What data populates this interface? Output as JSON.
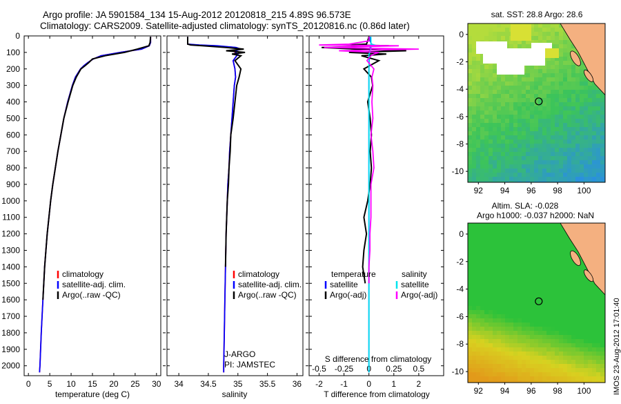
{
  "header": {
    "line1": "Argo profile: JA 5901584_134 15-Aug-2012 20120818_215 4.89S 96.573E",
    "line2": "Climatology: CARS2009. Satellite-adjusted climatology: synTS_20120816.nc (0.86d later)"
  },
  "side_stamp": "IMOS 23-Aug-2012 17:01:40",
  "colors": {
    "climatology": "#ff0000",
    "satellite_adj": "#0000ff",
    "argo": "#000000",
    "t_satellite": "#0000ff",
    "s_satellite": "#00e5ee",
    "s_argo": "#ff00ff",
    "land": "#f4b080",
    "sst_warm": "#dde42c",
    "sst_cool": "#1f7fe0",
    "sla_pos": "#e4a31c",
    "sla_neutral": "#22c33a"
  },
  "depth_axis": {
    "ticks": [
      0,
      100,
      200,
      300,
      400,
      500,
      600,
      700,
      800,
      900,
      1000,
      1100,
      1200,
      1300,
      1400,
      1500,
      1600,
      1700,
      1800,
      1900,
      2000
    ],
    "range": [
      0,
      2060
    ],
    "reversed": true
  },
  "chart_data": [
    {
      "id": "temperature",
      "type": "line",
      "xlabel": "temperature (deg C)",
      "xlim": [
        -1,
        31
      ],
      "xticks": [
        0,
        5,
        10,
        15,
        20,
        25,
        30
      ],
      "y": [
        5,
        40,
        60,
        80,
        100,
        120,
        140,
        160,
        180,
        200,
        250,
        300,
        400,
        500,
        600,
        700,
        800,
        900,
        1000,
        1200,
        1400,
        1600,
        1800,
        2000,
        2040
      ],
      "series": [
        {
          "name": "climatology",
          "color": "#ff0000",
          "values": [
            28.6,
            28.6,
            28.3,
            26.5,
            21.5,
            17.0,
            15.2,
            14.0,
            13.0,
            12.2,
            11.0,
            10.3,
            9.2,
            8.3,
            7.6,
            6.9,
            6.3,
            5.7,
            5.2,
            4.4,
            3.8,
            3.4,
            3.0,
            2.7,
            2.6
          ]
        },
        {
          "name": "satellite-adj. clim.",
          "color": "#0000ff",
          "values": [
            28.6,
            28.6,
            28.3,
            26.5,
            21.5,
            17.0,
            15.2,
            14.0,
            13.0,
            12.2,
            11.0,
            10.3,
            9.2,
            8.3,
            7.6,
            6.9,
            6.3,
            5.7,
            5.2,
            4.4,
            3.8,
            3.4,
            3.0,
            2.7,
            2.6
          ]
        },
        {
          "name": "Argo(..raw -QC)",
          "color": "#000000",
          "values": [
            28.6,
            28.5,
            28.2,
            25.5,
            22.5,
            18.0,
            15.0,
            14.2,
            13.3,
            12.3,
            11.2,
            10.4,
            9.3,
            8.3,
            7.6,
            6.9,
            6.3,
            5.7,
            5.2,
            4.4,
            3.8,
            3.4,
            null,
            null,
            null
          ]
        }
      ],
      "legend": [
        "climatology",
        "satellite-adj. clim.",
        "Argo(..raw -QC)"
      ]
    },
    {
      "id": "salinity",
      "type": "line",
      "xlabel": "salinity",
      "xlim": [
        33.8,
        36.1
      ],
      "xticks": [
        34,
        34.5,
        35,
        35.5,
        36
      ],
      "y": [
        5,
        50,
        55,
        60,
        70,
        80,
        90,
        100,
        110,
        120,
        150,
        200,
        250,
        300,
        400,
        500,
        600,
        700,
        800,
        900,
        1000,
        1200,
        1400,
        1600,
        1800,
        2000,
        2040
      ],
      "series": [
        {
          "name": "climatology",
          "color": "#ff0000",
          "values": [
            34.15,
            34.15,
            34.3,
            34.6,
            34.95,
            35.05,
            34.95,
            34.95,
            35.0,
            34.98,
            34.92,
            34.95,
            34.96,
            34.94,
            34.92,
            34.9,
            34.88,
            34.86,
            34.85,
            34.83,
            34.82,
            34.8,
            34.79,
            34.78,
            34.77,
            34.76,
            34.76
          ]
        },
        {
          "name": "satellite-adj. clim.",
          "color": "#0000ff",
          "values": [
            34.15,
            34.15,
            34.35,
            34.65,
            34.97,
            35.05,
            34.96,
            34.96,
            35.0,
            34.98,
            34.92,
            34.95,
            34.96,
            34.94,
            34.92,
            34.9,
            34.88,
            34.86,
            34.85,
            34.83,
            34.82,
            34.8,
            34.79,
            34.78,
            34.77,
            34.76,
            34.76
          ]
        },
        {
          "name": "Argo(..raw -QC)",
          "color": "#000000",
          "values": [
            34.15,
            34.15,
            34.2,
            34.4,
            34.8,
            35.1,
            34.8,
            35.12,
            34.9,
            35.05,
            34.95,
            35.05,
            35.02,
            34.98,
            34.95,
            34.92,
            34.88,
            34.87,
            34.85,
            34.84,
            34.82,
            34.8,
            34.79,
            null,
            null,
            null,
            null
          ]
        }
      ],
      "legend": [
        "climatology",
        "satellite-adj. clim.",
        "Argo(..raw -QC)"
      ],
      "annotations": [
        "J-ARGO",
        "PI: JAMSTEC"
      ]
    },
    {
      "id": "difference",
      "type": "line",
      "xlabel": "T difference from climatology",
      "xlabel_top": "S difference from climatology",
      "xlim": [
        -2.4,
        3.0
      ],
      "xticks": [
        -2,
        -1,
        0,
        1,
        2
      ],
      "xticks_top": [
        -0.5,
        -0.25,
        0,
        0.25,
        0.5
      ],
      "xticks_top_labels": [
        "-0.5",
        "-0.25",
        "0",
        "0.25",
        "0.5"
      ],
      "y": [
        5,
        30,
        50,
        55,
        60,
        70,
        80,
        90,
        100,
        110,
        120,
        150,
        200,
        250,
        300,
        400,
        500,
        600,
        700,
        800,
        900,
        1000,
        1100,
        1200,
        1300,
        1400,
        1500,
        1600,
        2000,
        2040
      ],
      "series": [
        {
          "name": "temperature satellite",
          "color": "#0000ff",
          "values": [
            0.05,
            0.05,
            0.1,
            0.2,
            0.1,
            0.05,
            0.05,
            0.03,
            0.02,
            0.02,
            0.02,
            0.01,
            0.0,
            0.0,
            0.0,
            0.0,
            0.0,
            0.0,
            0.0,
            0.0,
            0.0,
            0.0,
            0.0,
            0.0,
            0.0,
            0.0,
            0.0,
            0.0,
            0.0,
            0.0
          ]
        },
        {
          "name": "temperature Argo(-adj)",
          "color": "#000000",
          "values": [
            0.0,
            -0.05,
            -0.1,
            -0.8,
            0.8,
            -1.9,
            -0.5,
            1.5,
            -0.8,
            0.7,
            -0.3,
            0.4,
            -0.2,
            0.1,
            0.15,
            -0.05,
            0.05,
            0.1,
            0.05,
            0.1,
            0.05,
            -0.05,
            -0.2,
            -0.1,
            -0.2,
            -0.25,
            -0.15,
            null,
            null,
            null
          ]
        },
        {
          "name": "salinity satellite",
          "color": "#00e5ee",
          "values": [
            0.02,
            0.02,
            0.02,
            0.05,
            0.03,
            0.02,
            0.02,
            0.01,
            0.01,
            0.0,
            0.0,
            0.0,
            0.0,
            0.0,
            0.0,
            0.0,
            0.0,
            0.0,
            0.0,
            0.0,
            0.0,
            0.0,
            0.0,
            0.0,
            0.0,
            0.0,
            0.0,
            0.0,
            0.0,
            0.0
          ]
        },
        {
          "name": "salinity Argo(-adj)",
          "color": "#ff00ff",
          "values": [
            0.0,
            0.0,
            -0.2,
            -0.5,
            0.3,
            -0.45,
            0.5,
            -0.3,
            0.1,
            0.05,
            0.02,
            -0.02,
            0.05,
            0.03,
            0.04,
            0.03,
            0.04,
            0.02,
            0.04,
            0.05,
            0.02,
            0.02,
            0.02,
            0.01,
            0.01,
            0.0,
            0.0,
            null,
            null,
            null
          ]
        }
      ],
      "legend": {
        "temperature_title": "temperature",
        "salinity_title": "salinity",
        "items": [
          {
            "group": "temperature",
            "label": "satellite",
            "color": "#0000ff"
          },
          {
            "group": "temperature",
            "label": "Argo(-adj)",
            "color": "#000000"
          },
          {
            "group": "salinity",
            "label": "satellite",
            "color": "#00e5ee"
          },
          {
            "group": "salinity",
            "label": "Argo(-adj)",
            "color": "#ff00ff"
          }
        ]
      }
    },
    {
      "id": "sst_map",
      "type": "heatmap",
      "title": "sat. SST: 28.8 Argo: 28.6",
      "xticks": [
        92,
        94,
        96,
        98,
        100
      ],
      "yticks": [
        0,
        -2,
        -4,
        -6,
        -8,
        -10
      ],
      "xlim": [
        91.2,
        101.6
      ],
      "ylim": [
        -10.8,
        0.8
      ],
      "argo_position": {
        "lon": 96.573,
        "lat": -4.89
      }
    },
    {
      "id": "sla_map",
      "type": "heatmap",
      "title_line1": "Altim. SLA: -0.028",
      "title_line2": "Argo h1000: -0.037 h2000: NaN",
      "xticks": [
        92,
        94,
        96,
        98,
        100
      ],
      "yticks": [
        0,
        -2,
        -4,
        -6,
        -8,
        -10
      ],
      "xlim": [
        91.2,
        101.6
      ],
      "ylim": [
        -10.8,
        0.8
      ],
      "argo_position": {
        "lon": 96.573,
        "lat": -4.89
      }
    }
  ]
}
